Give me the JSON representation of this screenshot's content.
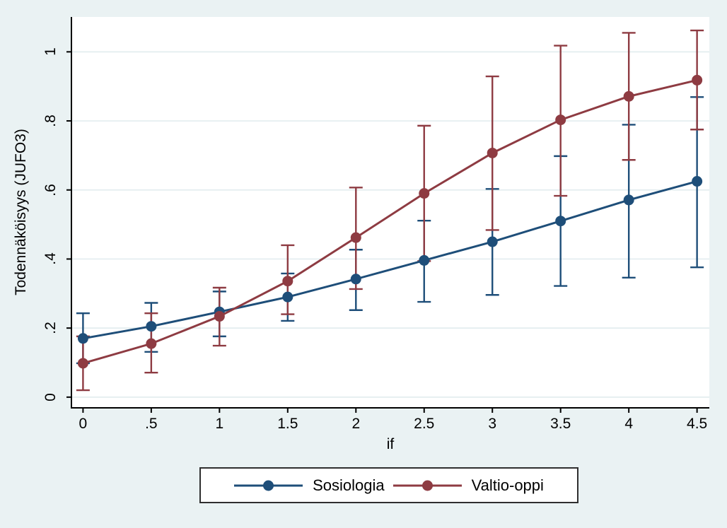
{
  "chart_data": {
    "type": "line",
    "title": "",
    "xlabel": "if",
    "ylabel": "Todennäköisyys (JUFO3)",
    "x": [
      0,
      0.5,
      1,
      1.5,
      2,
      2.5,
      3,
      3.5,
      4,
      4.5
    ],
    "series": [
      {
        "name": "Sosiologia",
        "color": "#1e4e79",
        "values": [
          0.17,
          0.205,
          0.247,
          0.29,
          0.342,
          0.396,
          0.45,
          0.51,
          0.571,
          0.625
        ],
        "ci_low": [
          0.098,
          0.131,
          0.176,
          0.221,
          0.252,
          0.276,
          0.296,
          0.322,
          0.346,
          0.376
        ],
        "ci_high": [
          0.243,
          0.273,
          0.306,
          0.358,
          0.427,
          0.511,
          0.603,
          0.698,
          0.789,
          0.869
        ]
      },
      {
        "name": "Valtio-oppi",
        "color": "#8e3b42",
        "values": [
          0.098,
          0.155,
          0.234,
          0.336,
          0.462,
          0.59,
          0.707,
          0.803,
          0.871,
          0.918
        ],
        "ci_low": [
          0.02,
          0.071,
          0.149,
          0.24,
          0.313,
          0.394,
          0.484,
          0.583,
          0.687,
          0.775
        ],
        "ci_high": [
          0.176,
          0.243,
          0.317,
          0.44,
          0.607,
          0.786,
          0.929,
          1.018,
          1.055,
          1.062
        ]
      }
    ],
    "xticks": [
      0,
      0.5,
      1,
      1.5,
      2,
      2.5,
      3,
      3.5,
      4,
      4.5
    ],
    "xtick_labels": [
      "0",
      ".5",
      "1",
      "1.5",
      "2",
      "2.5",
      "3",
      "3.5",
      "4",
      "4.5"
    ],
    "yticks": [
      0,
      0.2,
      0.4,
      0.6,
      0.8,
      1
    ],
    "ytick_labels": [
      "0",
      ".2",
      ".4",
      ".6",
      ".8",
      "1"
    ],
    "xlim": [
      -0.085,
      4.59
    ],
    "ylim": [
      -0.031,
      1.101
    ],
    "grid": true,
    "legend_position": "bottom"
  },
  "colors": {
    "background": "#eaf2f3",
    "plot_background": "#ffffff",
    "gridline": "#e3edef",
    "axis": "#000000",
    "legend_border": "#2f2f2f"
  }
}
